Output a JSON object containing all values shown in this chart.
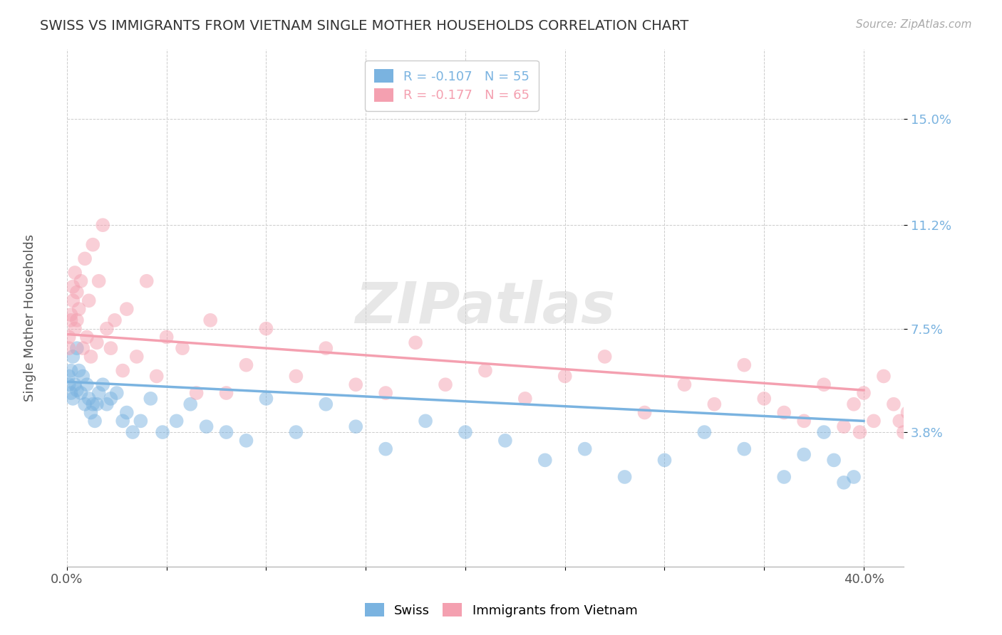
{
  "title": "SWISS VS IMMIGRANTS FROM VIETNAM SINGLE MOTHER HOUSEHOLDS CORRELATION CHART",
  "source_text": "Source: ZipAtlas.com",
  "ylabel": "Single Mother Households",
  "xlim": [
    0.0,
    0.42
  ],
  "ylim": [
    -0.01,
    0.175
  ],
  "xticks": [
    0.0,
    0.05,
    0.1,
    0.15,
    0.2,
    0.25,
    0.3,
    0.35,
    0.4
  ],
  "xticklabels": [
    "0.0%",
    "",
    "",
    "",
    "",
    "",
    "",
    "",
    "40.0%"
  ],
  "ytick_positions": [
    0.038,
    0.075,
    0.112,
    0.15
  ],
  "ytick_labels": [
    "3.8%",
    "7.5%",
    "11.2%",
    "15.0%"
  ],
  "swiss_color": "#7ab3e0",
  "vietnam_color": "#f4a0b0",
  "swiss_R": -0.107,
  "swiss_N": 55,
  "vietnam_R": -0.177,
  "vietnam_N": 65,
  "watermark": "ZIPatlas",
  "legend_swiss_label": "Swiss",
  "legend_vietnam_label": "Immigrants from Vietnam",
  "swiss_scatter_x": [
    0.001,
    0.001,
    0.002,
    0.002,
    0.003,
    0.003,
    0.004,
    0.005,
    0.005,
    0.006,
    0.007,
    0.008,
    0.009,
    0.01,
    0.011,
    0.012,
    0.013,
    0.014,
    0.015,
    0.016,
    0.018,
    0.02,
    0.022,
    0.025,
    0.028,
    0.03,
    0.033,
    0.037,
    0.042,
    0.048,
    0.055,
    0.062,
    0.07,
    0.08,
    0.09,
    0.1,
    0.115,
    0.13,
    0.145,
    0.16,
    0.18,
    0.2,
    0.22,
    0.24,
    0.26,
    0.28,
    0.3,
    0.32,
    0.34,
    0.36,
    0.37,
    0.38,
    0.385,
    0.39,
    0.395
  ],
  "swiss_scatter_y": [
    0.055,
    0.058,
    0.06,
    0.052,
    0.065,
    0.05,
    0.055,
    0.068,
    0.053,
    0.06,
    0.052,
    0.058,
    0.048,
    0.055,
    0.05,
    0.045,
    0.048,
    0.042,
    0.048,
    0.052,
    0.055,
    0.048,
    0.05,
    0.052,
    0.042,
    0.045,
    0.038,
    0.042,
    0.05,
    0.038,
    0.042,
    0.048,
    0.04,
    0.038,
    0.035,
    0.05,
    0.038,
    0.048,
    0.04,
    0.032,
    0.042,
    0.038,
    0.035,
    0.028,
    0.032,
    0.022,
    0.028,
    0.038,
    0.032,
    0.022,
    0.03,
    0.038,
    0.028,
    0.02,
    0.022
  ],
  "vietnam_scatter_x": [
    0.001,
    0.001,
    0.002,
    0.002,
    0.003,
    0.003,
    0.004,
    0.004,
    0.005,
    0.005,
    0.006,
    0.007,
    0.008,
    0.009,
    0.01,
    0.011,
    0.012,
    0.013,
    0.015,
    0.016,
    0.018,
    0.02,
    0.022,
    0.024,
    0.028,
    0.03,
    0.035,
    0.04,
    0.045,
    0.05,
    0.058,
    0.065,
    0.072,
    0.08,
    0.09,
    0.1,
    0.115,
    0.13,
    0.145,
    0.16,
    0.175,
    0.19,
    0.21,
    0.23,
    0.25,
    0.27,
    0.29,
    0.31,
    0.325,
    0.34,
    0.35,
    0.36,
    0.37,
    0.38,
    0.39,
    0.395,
    0.398,
    0.4,
    0.405,
    0.41,
    0.415,
    0.418,
    0.42,
    0.422,
    0.425
  ],
  "vietnam_scatter_y": [
    0.072,
    0.068,
    0.08,
    0.078,
    0.09,
    0.085,
    0.095,
    0.075,
    0.088,
    0.078,
    0.082,
    0.092,
    0.068,
    0.1,
    0.072,
    0.085,
    0.065,
    0.105,
    0.07,
    0.092,
    0.112,
    0.075,
    0.068,
    0.078,
    0.06,
    0.082,
    0.065,
    0.092,
    0.058,
    0.072,
    0.068,
    0.052,
    0.078,
    0.052,
    0.062,
    0.075,
    0.058,
    0.068,
    0.055,
    0.052,
    0.07,
    0.055,
    0.06,
    0.05,
    0.058,
    0.065,
    0.045,
    0.055,
    0.048,
    0.062,
    0.05,
    0.045,
    0.042,
    0.055,
    0.04,
    0.048,
    0.038,
    0.052,
    0.042,
    0.058,
    0.048,
    0.042,
    0.038,
    0.045,
    0.04
  ]
}
